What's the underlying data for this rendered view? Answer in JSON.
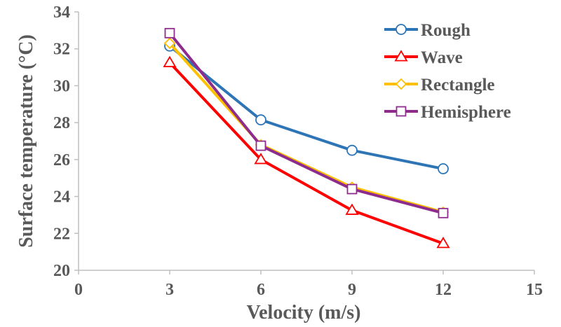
{
  "chart_data": {
    "type": "line",
    "xlabel": "Velocity (m/s)",
    "ylabel": "Surface temperature (°C)",
    "xlim": [
      0,
      15
    ],
    "ylim": [
      20,
      34
    ],
    "xticks": [
      0,
      3,
      6,
      9,
      12,
      15
    ],
    "yticks": [
      20,
      22,
      24,
      26,
      28,
      30,
      32,
      34
    ],
    "grid": false,
    "legend_position": "top-right",
    "x": [
      3,
      6,
      9,
      12
    ],
    "series": [
      {
        "name": "Rough",
        "values": [
          32.15,
          28.15,
          26.5,
          25.5
        ],
        "color": "#2E75B6",
        "marker": "circle"
      },
      {
        "name": "Wave",
        "values": [
          31.25,
          26.0,
          23.25,
          21.45
        ],
        "color": "#FF0000",
        "marker": "triangle"
      },
      {
        "name": "Rectangle",
        "values": [
          32.3,
          26.8,
          24.5,
          23.15
        ],
        "color": "#FFC000",
        "marker": "diamond"
      },
      {
        "name": "Hemisphere",
        "values": [
          32.85,
          26.75,
          24.4,
          23.1
        ],
        "color": "#8E2C8E",
        "marker": "square"
      }
    ]
  }
}
